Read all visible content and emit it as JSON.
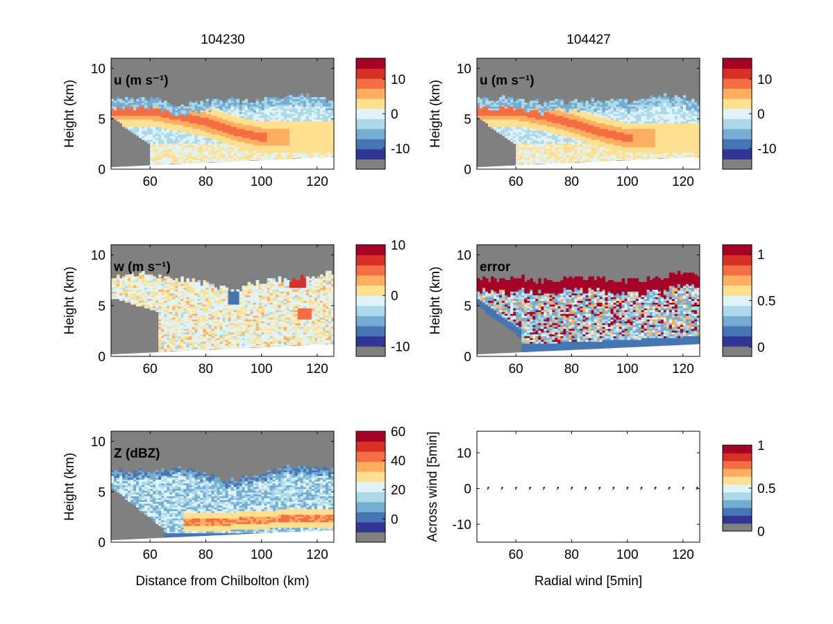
{
  "figure": {
    "column_titles": [
      "104230",
      "104427"
    ],
    "shared_xlabel": "Distance from Chilbolton (km)"
  },
  "colors": {
    "background_fill": "#808080",
    "below_surface": "#ffffff",
    "colormap": [
      "#808080",
      "#313695",
      "#4575b4",
      "#74add1",
      "#abd9e9",
      "#e0f3f8",
      "#fee090",
      "#fdae61",
      "#f46d43",
      "#d73027",
      "#a50026"
    ]
  },
  "chart_data": [
    {
      "type": "heatmap",
      "panel": "u",
      "column": "104230",
      "label": "u (m s⁻¹)",
      "xlabel": "",
      "ylabel": "Height (km)",
      "xlim": [
        46,
        126
      ],
      "ylim": [
        0,
        11
      ],
      "xticks": [
        60,
        80,
        100,
        120
      ],
      "yticks": [
        0,
        5,
        10
      ],
      "colorbar": {
        "lim": [
          -16,
          16
        ],
        "ticks": [
          -10,
          0,
          10
        ]
      },
      "structure": [
        {
          "feature": "echo top (km)",
          "x": [
            46,
            60,
            70,
            80,
            90,
            100,
            110,
            120,
            126
          ],
          "y": [
            7.0,
            7.0,
            6.4,
            6.8,
            6.8,
            6.7,
            7.4,
            7.2,
            6.5
          ]
        },
        {
          "feature": "jet core u≈10 height (km)",
          "x": [
            60,
            70,
            80,
            90,
            100
          ],
          "y": [
            5.8,
            5.3,
            4.7,
            3.8,
            3.2
          ]
        }
      ]
    },
    {
      "type": "heatmap",
      "panel": "u",
      "column": "104427",
      "label": "u (m s⁻¹)",
      "xlabel": "",
      "ylabel": "Height (km)",
      "xlim": [
        46,
        126
      ],
      "ylim": [
        0,
        11
      ],
      "xticks": [
        60,
        80,
        100,
        120
      ],
      "yticks": [
        0,
        5,
        10
      ],
      "colorbar": {
        "lim": [
          -16,
          16
        ],
        "ticks": [
          -10,
          0,
          10
        ]
      },
      "structure": [
        {
          "feature": "echo top (km)",
          "x": [
            46,
            60,
            70,
            80,
            90,
            100,
            110,
            120,
            126
          ],
          "y": [
            7.0,
            7.0,
            6.5,
            6.8,
            6.8,
            6.7,
            7.3,
            7.2,
            6.5
          ]
        },
        {
          "feature": "jet core u≈10 height (km)",
          "x": [
            60,
            70,
            80,
            90,
            100
          ],
          "y": [
            5.8,
            5.3,
            4.6,
            3.7,
            3.1
          ]
        }
      ]
    },
    {
      "type": "heatmap",
      "panel": "w",
      "column": "104230",
      "label": "w (m s⁻¹)",
      "xlabel": "",
      "ylabel": "Height (km)",
      "xlim": [
        46,
        126
      ],
      "ylim": [
        0,
        11
      ],
      "xticks": [
        60,
        80,
        100,
        120
      ],
      "yticks": [
        0,
        5,
        10
      ],
      "colorbar": {
        "lim": [
          -12,
          10
        ],
        "ticks": [
          -10,
          0,
          10
        ]
      },
      "structure": [
        {
          "feature": "echo top (km)",
          "x": [
            46,
            60,
            70,
            80,
            90,
            100,
            110,
            120,
            126
          ],
          "y": [
            7.8,
            8.2,
            7.6,
            7.2,
            6.6,
            7.4,
            7.6,
            8.0,
            8.2
          ]
        }
      ]
    },
    {
      "type": "heatmap",
      "panel": "error",
      "column": "104427",
      "label": "error",
      "xlabel": "",
      "ylabel": "Height (km)",
      "xlim": [
        46,
        126
      ],
      "ylim": [
        0,
        11
      ],
      "xticks": [
        60,
        80,
        100,
        120
      ],
      "yticks": [
        0,
        5,
        10
      ],
      "colorbar": {
        "lim": [
          -0.1,
          1.1
        ],
        "ticks": [
          0,
          0.5,
          1
        ]
      },
      "structure": [
        {
          "feature": "echo top (km)",
          "x": [
            46,
            60,
            70,
            80,
            90,
            100,
            110,
            120,
            126
          ],
          "y": [
            7.6,
            7.8,
            7.4,
            7.8,
            7.6,
            7.4,
            7.6,
            8.2,
            8.2
          ]
        }
      ]
    },
    {
      "type": "heatmap",
      "panel": "Z",
      "column": "104230",
      "label": "Z (dBZ)",
      "xlabel": "Distance from Chilbolton (km)",
      "ylabel": "Height (km)",
      "xlim": [
        46,
        126
      ],
      "ylim": [
        0,
        11
      ],
      "xticks": [
        60,
        80,
        100,
        120
      ],
      "yticks": [
        0,
        5,
        10
      ],
      "colorbar": {
        "lim": [
          -16,
          60
        ],
        "ticks": [
          0,
          20,
          40,
          60
        ]
      },
      "structure": [
        {
          "feature": "echo top (km)",
          "x": [
            46,
            60,
            70,
            80,
            90,
            100,
            110,
            120,
            126
          ],
          "y": [
            7.2,
            6.9,
            7.5,
            6.6,
            6.1,
            6.8,
            7.4,
            7.5,
            7.1
          ]
        },
        {
          "feature": "bright band 30-40 dBZ height (km)",
          "x": [
            75,
            90,
            105,
            120
          ],
          "y": [
            2.0,
            2.1,
            2.3,
            2.4
          ]
        }
      ]
    },
    {
      "type": "scatter",
      "panel": "quiver",
      "column": "104427",
      "label": "",
      "xlabel": "Radial wind [5min]",
      "ylabel": "Across wind [5min]",
      "xlim": [
        46,
        126
      ],
      "ylim": [
        -15,
        16
      ],
      "xticks": [
        60,
        80,
        100,
        120
      ],
      "yticks": [
        -10,
        0,
        10
      ],
      "colorbar": {
        "lim": [
          0,
          1
        ],
        "ticks": [
          0,
          0.5,
          1
        ]
      },
      "x": [
        50,
        55,
        60,
        65,
        70,
        75,
        80,
        85,
        90,
        95,
        100,
        105,
        110,
        115,
        120,
        125
      ],
      "y": [
        0,
        0,
        0,
        0,
        0,
        0,
        0,
        0,
        0,
        0,
        0,
        0,
        0,
        0,
        0,
        0
      ]
    }
  ]
}
